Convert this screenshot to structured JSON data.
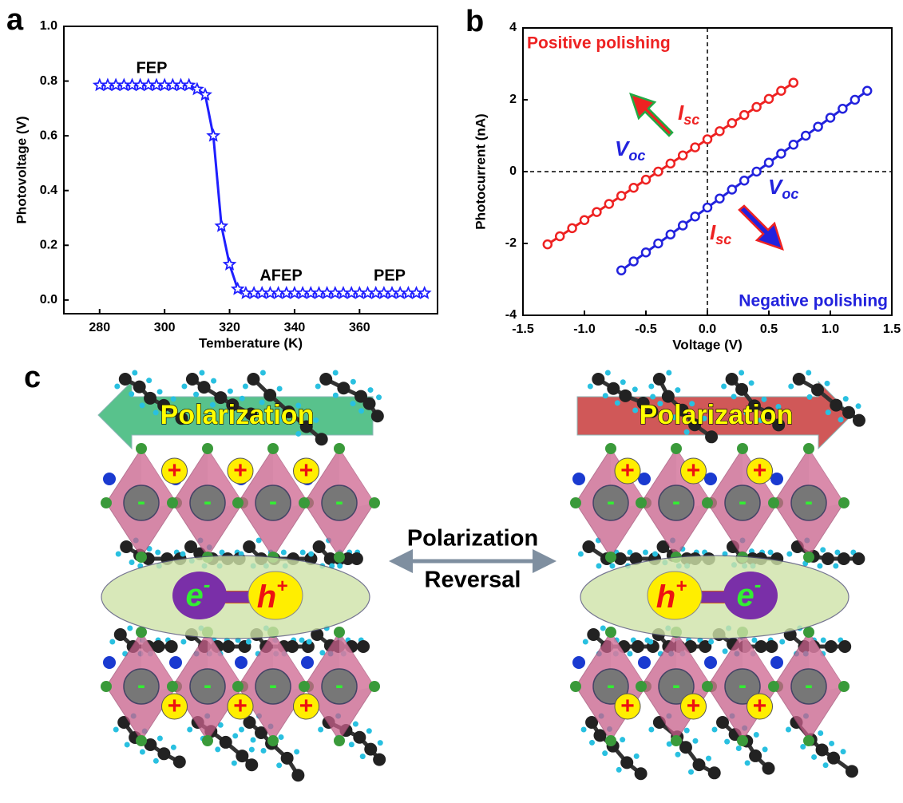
{
  "chart_data": [
    {
      "type": "line",
      "panel_label": "a",
      "xlabel": "Temberature (K)",
      "ylabel": "Photovoltage (V)",
      "color": "#1f1fff",
      "marker": "star",
      "x": [
        280,
        282.5,
        285,
        287.5,
        290,
        292.5,
        295,
        297.5,
        300,
        302.5,
        305,
        307.5,
        310,
        312.5,
        315,
        317.5,
        320,
        322.5,
        325,
        327.5,
        330,
        332.5,
        335,
        337.5,
        340,
        342.5,
        345,
        347.5,
        350,
        352.5,
        355,
        357.5,
        360,
        362.5,
        365,
        367.5,
        370,
        372.5,
        375,
        377.5,
        380
      ],
      "values": [
        0.785,
        0.785,
        0.785,
        0.785,
        0.785,
        0.785,
        0.785,
        0.785,
        0.785,
        0.785,
        0.785,
        0.785,
        0.77,
        0.75,
        0.6,
        0.27,
        0.13,
        0.04,
        0.025,
        0.025,
        0.025,
        0.025,
        0.025,
        0.025,
        0.025,
        0.025,
        0.025,
        0.025,
        0.025,
        0.025,
        0.025,
        0.025,
        0.025,
        0.025,
        0.025,
        0.025,
        0.025,
        0.025,
        0.025,
        0.025,
        0.025
      ],
      "xlim": [
        269,
        384
      ],
      "xticks": [
        280,
        300,
        320,
        340,
        360
      ],
      "ylim": [
        -0.05,
        1.0
      ],
      "yticks": [
        {
          "value": 0,
          "label": "0.0"
        },
        0.2,
        0.4,
        0.6,
        0.8,
        {
          "value": 1,
          "label": "1.0"
        }
      ],
      "annotations": [
        "FEP",
        "AFEP",
        "PEP"
      ]
    },
    {
      "type": "line",
      "panel_label": "b",
      "xlabel": "Voltage (V)",
      "ylabel": "Photocurrent (nA)",
      "marker": "circle",
      "series": [
        {
          "color": "#ee2222",
          "x": [
            -1.3,
            -1.2,
            -1.1,
            -1.0,
            -0.9,
            -0.8,
            -0.7,
            -0.6,
            -0.5,
            -0.4,
            -0.3,
            -0.2,
            -0.1,
            0,
            0.1,
            0.2,
            0.3,
            0.4,
            0.5,
            0.6,
            0.7
          ],
          "values": [
            -2.025,
            -1.8,
            -1.575,
            -1.35,
            -1.125,
            -0.9,
            -0.675,
            -0.45,
            -0.225,
            0,
            0.225,
            0.45,
            0.675,
            0.9,
            1.125,
            1.35,
            1.575,
            1.8,
            2.025,
            2.25,
            2.475
          ]
        },
        {
          "color": "#2222dd",
          "x": [
            -0.7,
            -0.6,
            -0.5,
            -0.4,
            -0.3,
            -0.2,
            -0.1,
            0,
            0.1,
            0.2,
            0.3,
            0.4,
            0.5,
            0.6,
            0.7,
            0.8,
            0.9,
            1.0,
            1.1,
            1.2,
            1.3
          ],
          "values": [
            -2.75,
            -2.5,
            -2.25,
            -2,
            -1.75,
            -1.5,
            -1.25,
            -1,
            -0.75,
            -0.5,
            -0.25,
            0,
            0.25,
            0.5,
            0.75,
            1,
            1.25,
            1.5,
            1.75,
            2,
            2.25
          ]
        }
      ],
      "xlim": [
        -1.5,
        1.5
      ],
      "xticks": [
        -1.5,
        {
          "value": -1,
          "label": "-1.0"
        },
        -0.5,
        {
          "value": 0,
          "label": "0.0"
        },
        0.5,
        {
          "value": 1,
          "label": "1.0"
        },
        1.5
      ],
      "ylim": [
        -4,
        4
      ],
      "yticks": [
        -4,
        -2,
        0,
        2,
        4
      ],
      "annotations": [
        {
          "text": "Positive polishing",
          "color": "#ee2222"
        },
        {
          "text": "Negative polishing",
          "color": "#2222dd"
        },
        {
          "main": "V",
          "sub": "oc",
          "color": "#2222dd"
        },
        {
          "main": "V",
          "sub": "oc",
          "color": "#2222dd"
        },
        {
          "main": "I",
          "sub": "sc",
          "color": "#ee2222"
        },
        {
          "main": "I",
          "sub": "sc",
          "color": "#ee2222"
        }
      ]
    }
  ],
  "diagram": {
    "panel_label": "c",
    "left_arrow": "Polarization",
    "right_arrow": "Polarization",
    "center_top": "Polarization",
    "center_bottom": "Reversal",
    "hole": "h",
    "electron": "e",
    "plus": "+",
    "minus": "-"
  }
}
